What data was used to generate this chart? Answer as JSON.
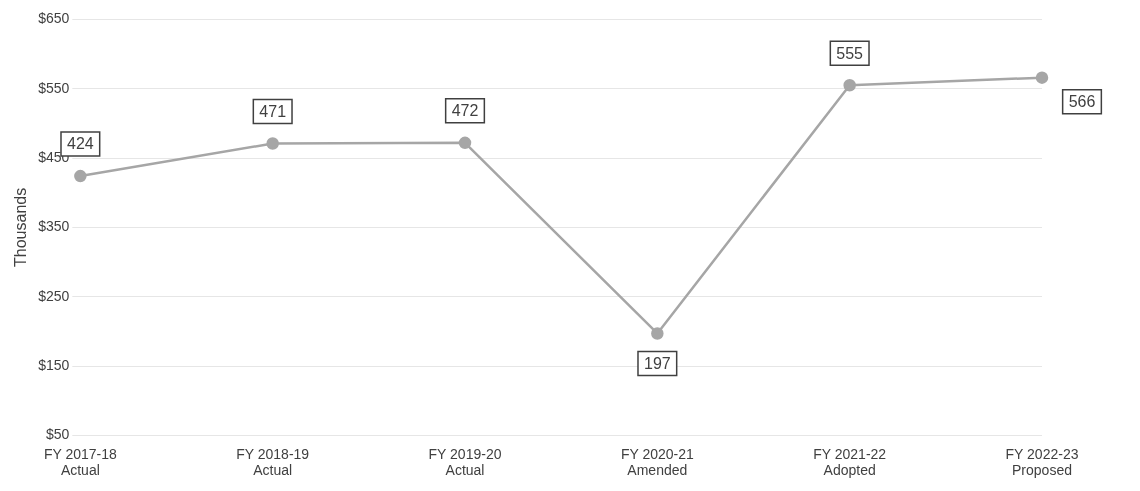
{
  "chart_data": {
    "type": "line",
    "ylabel": "Thousands",
    "categories": [
      "FY 2017-18\nActual",
      "FY 2018-19\nActual",
      "FY 2019-20\nActual",
      "FY 2020-21\nAmended",
      "FY 2021-22\nAdopted",
      "FY 2022-23\nProposed"
    ],
    "series": [
      {
        "color": "#a6a6a6",
        "values": [
          424,
          471,
          472,
          197,
          555,
          566
        ]
      }
    ],
    "ylim": [
      50,
      650
    ],
    "yticks": [
      {
        "value": 50,
        "label": "$50"
      },
      {
        "value": 150,
        "label": "$150"
      },
      {
        "value": 250,
        "label": "$250"
      },
      {
        "value": 350,
        "label": "$350"
      },
      {
        "value": 450,
        "label": "$450"
      },
      {
        "value": 550,
        "label": "$550"
      },
      {
        "value": 650,
        "label": "$650"
      }
    ],
    "grid": "y",
    "marker": "circle",
    "line_style": "solid",
    "data_labels": true,
    "legend": false
  }
}
